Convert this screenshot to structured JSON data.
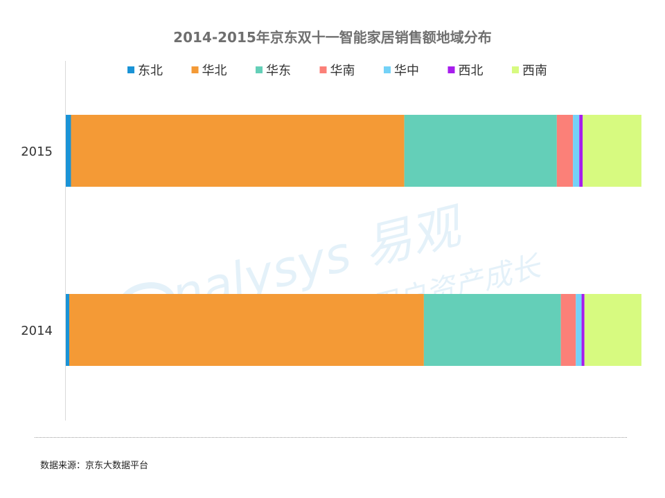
{
  "chart_data": {
    "type": "bar",
    "orientation": "horizontal",
    "stacked": true,
    "percent": true,
    "title": "2014-2015年京东双十一智能家居销售额地域分布",
    "categories": [
      "2015",
      "2014"
    ],
    "series": [
      {
        "name": "东北",
        "color": "#1a93d6",
        "values": [
          0.9,
          0.6
        ]
      },
      {
        "name": "华北",
        "color": "#f49a36",
        "values": [
          57.9,
          61.6
        ]
      },
      {
        "name": "华东",
        "color": "#64cfb8",
        "values": [
          26.5,
          23.8
        ]
      },
      {
        "name": "华南",
        "color": "#fb8078",
        "values": [
          2.8,
          2.6
        ]
      },
      {
        "name": "华中",
        "color": "#74d2f7",
        "values": [
          1.1,
          1.0
        ]
      },
      {
        "name": "西北",
        "color": "#a71ded",
        "values": [
          0.6,
          0.5
        ]
      },
      {
        "name": "西南",
        "color": "#d7fa80",
        "values": [
          10.2,
          9.9
        ]
      }
    ],
    "xlim": [
      0,
      100
    ],
    "grid": false,
    "legend_position": "top"
  },
  "footer": {
    "source": "数据来源：京东大数据平台"
  },
  "watermark": {
    "brand": "nalysys 易观",
    "slogan": "实时分析驱动用户资产成长"
  }
}
